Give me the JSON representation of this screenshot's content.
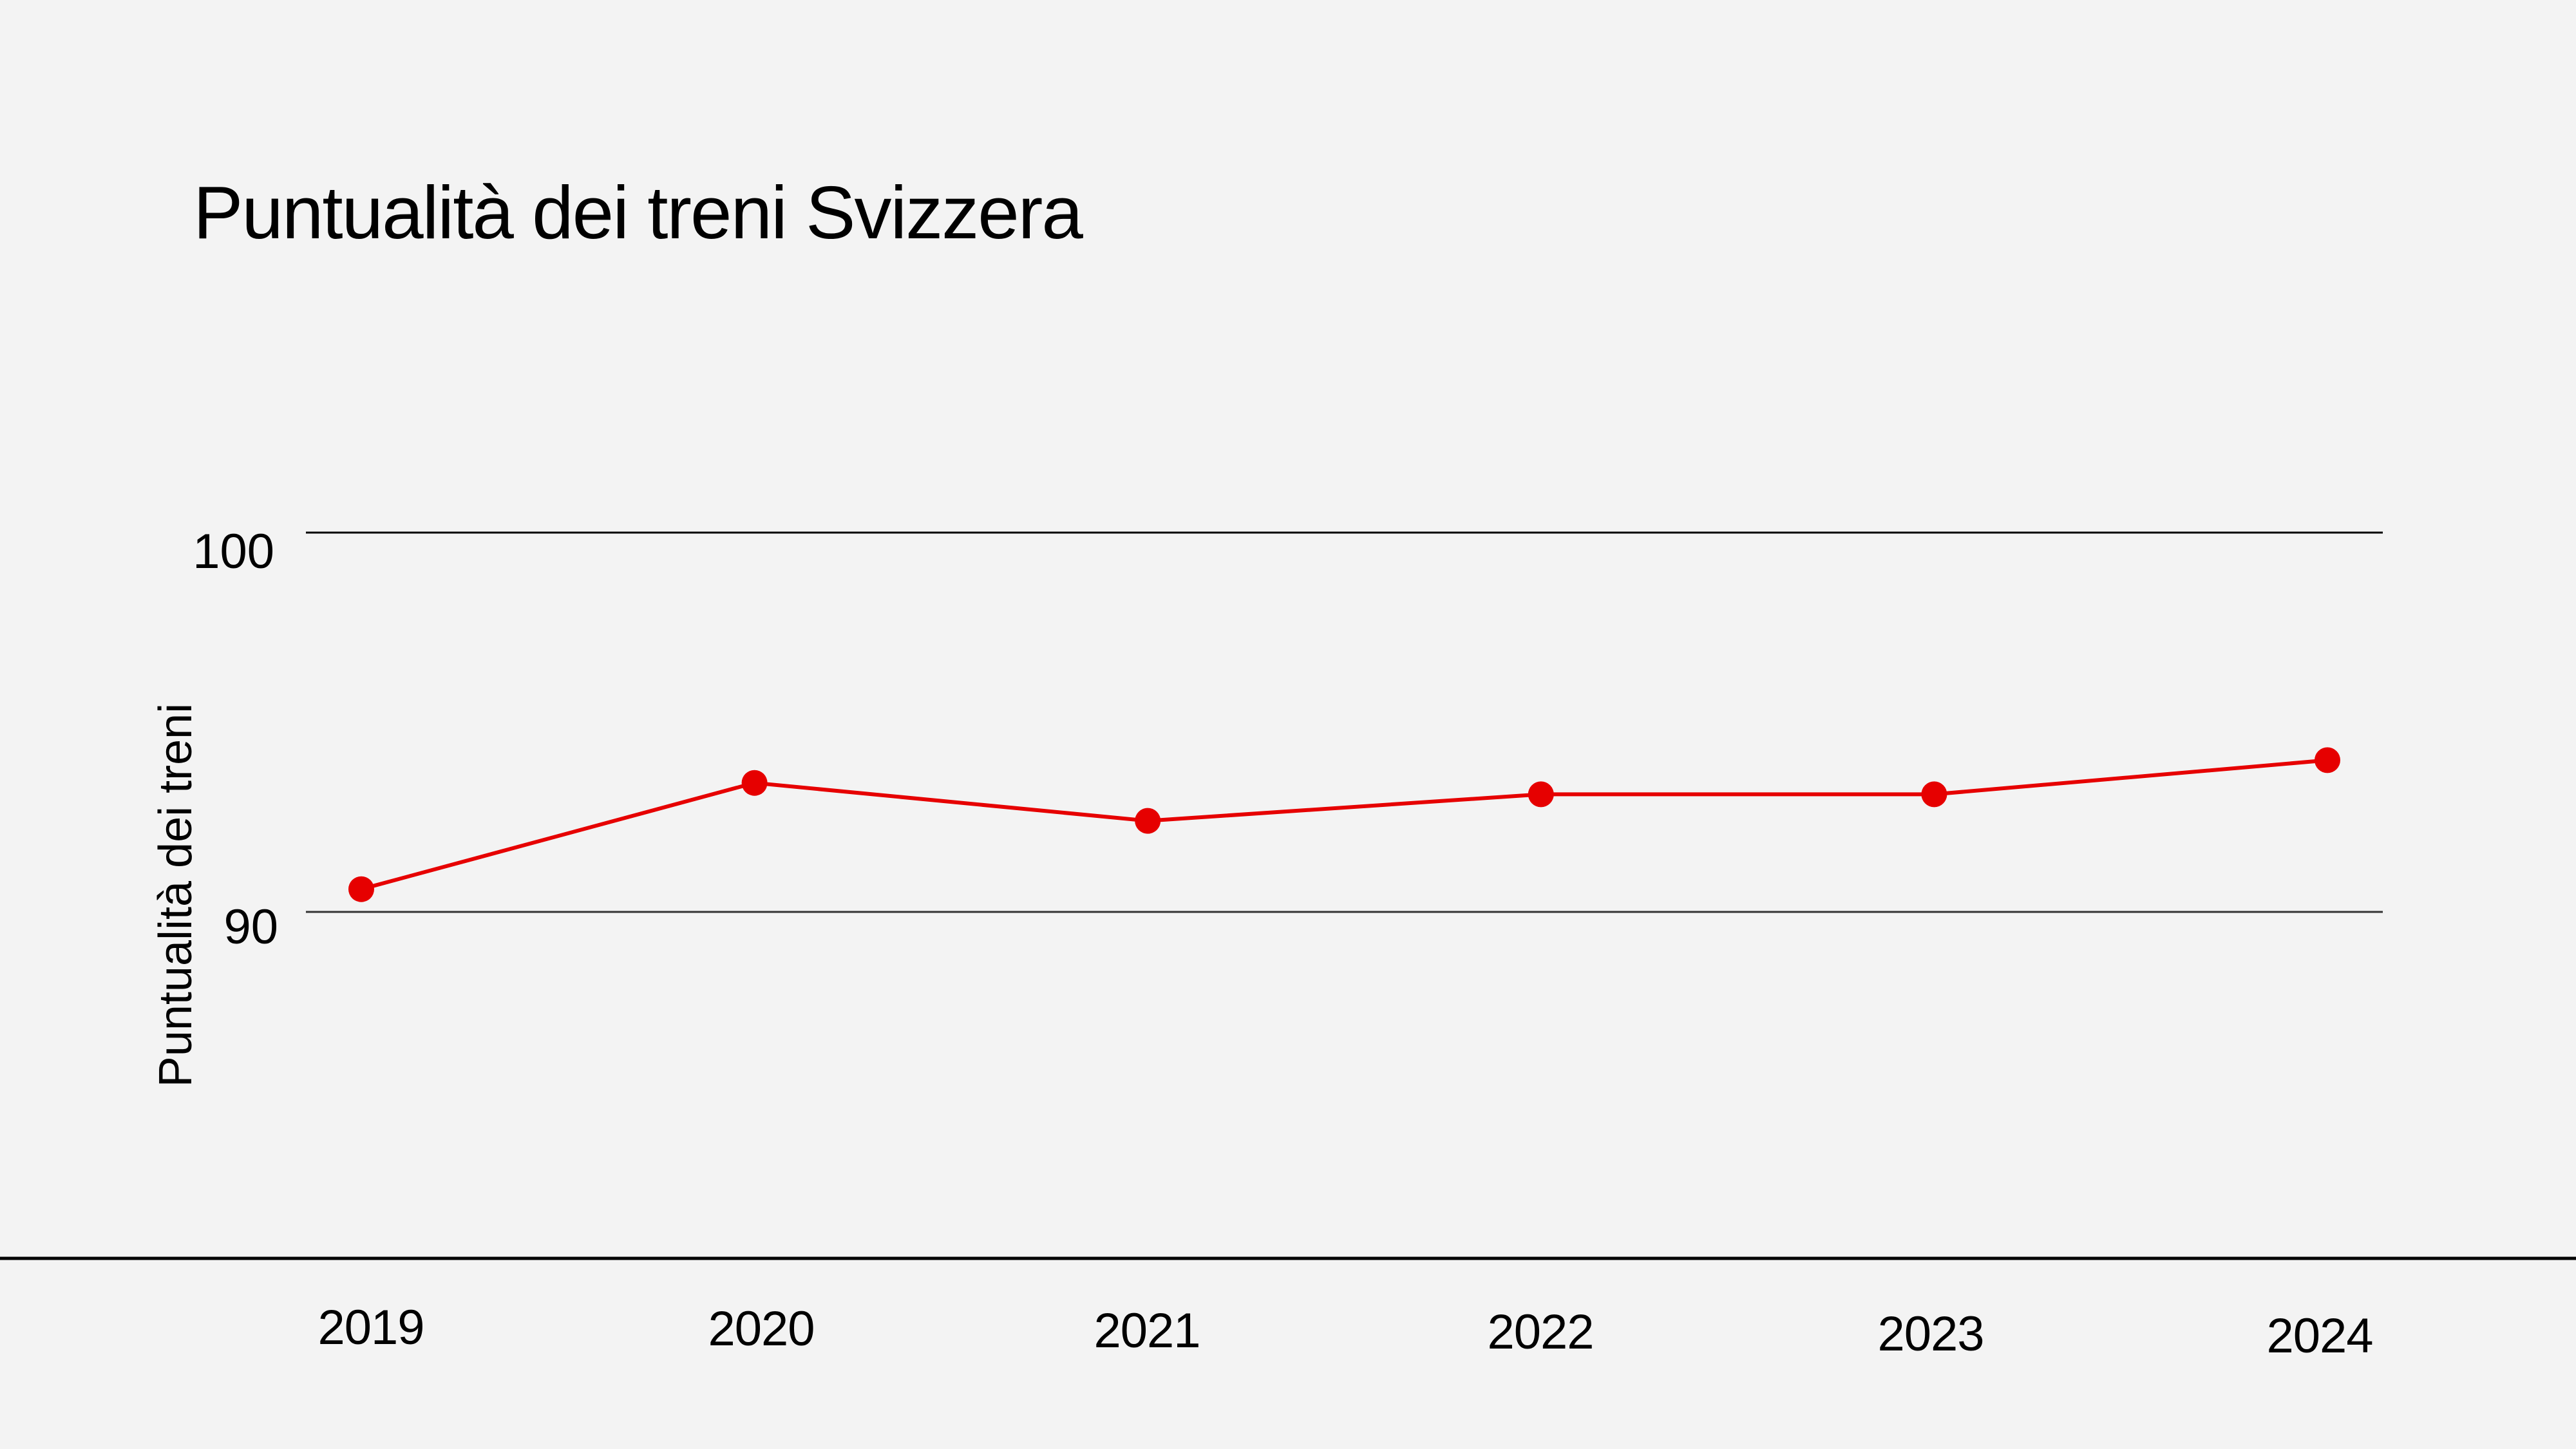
{
  "chart_data": {
    "type": "line",
    "title": "Puntualità dei treni Svizzera",
    "xlabel": "",
    "ylabel": "Puntualità dei treni",
    "categories": [
      "2019",
      "2020",
      "2021",
      "2022",
      "2023",
      "2024"
    ],
    "series": [
      {
        "name": "Puntualità dei treni",
        "color": "#e60000",
        "values": [
          90.6,
          93.4,
          92.4,
          93.1,
          93.1,
          94.0
        ]
      }
    ],
    "y_ticks": [
      "100",
      "90"
    ],
    "y_tick_values": [
      100,
      90
    ],
    "ylim": [
      80.9,
      100
    ],
    "grid": true,
    "legend": "none"
  },
  "colors": {
    "background": "#f3f3f3",
    "line": "#e60000",
    "gridline": "#000000",
    "axis": "#000000",
    "text": "#000000"
  }
}
